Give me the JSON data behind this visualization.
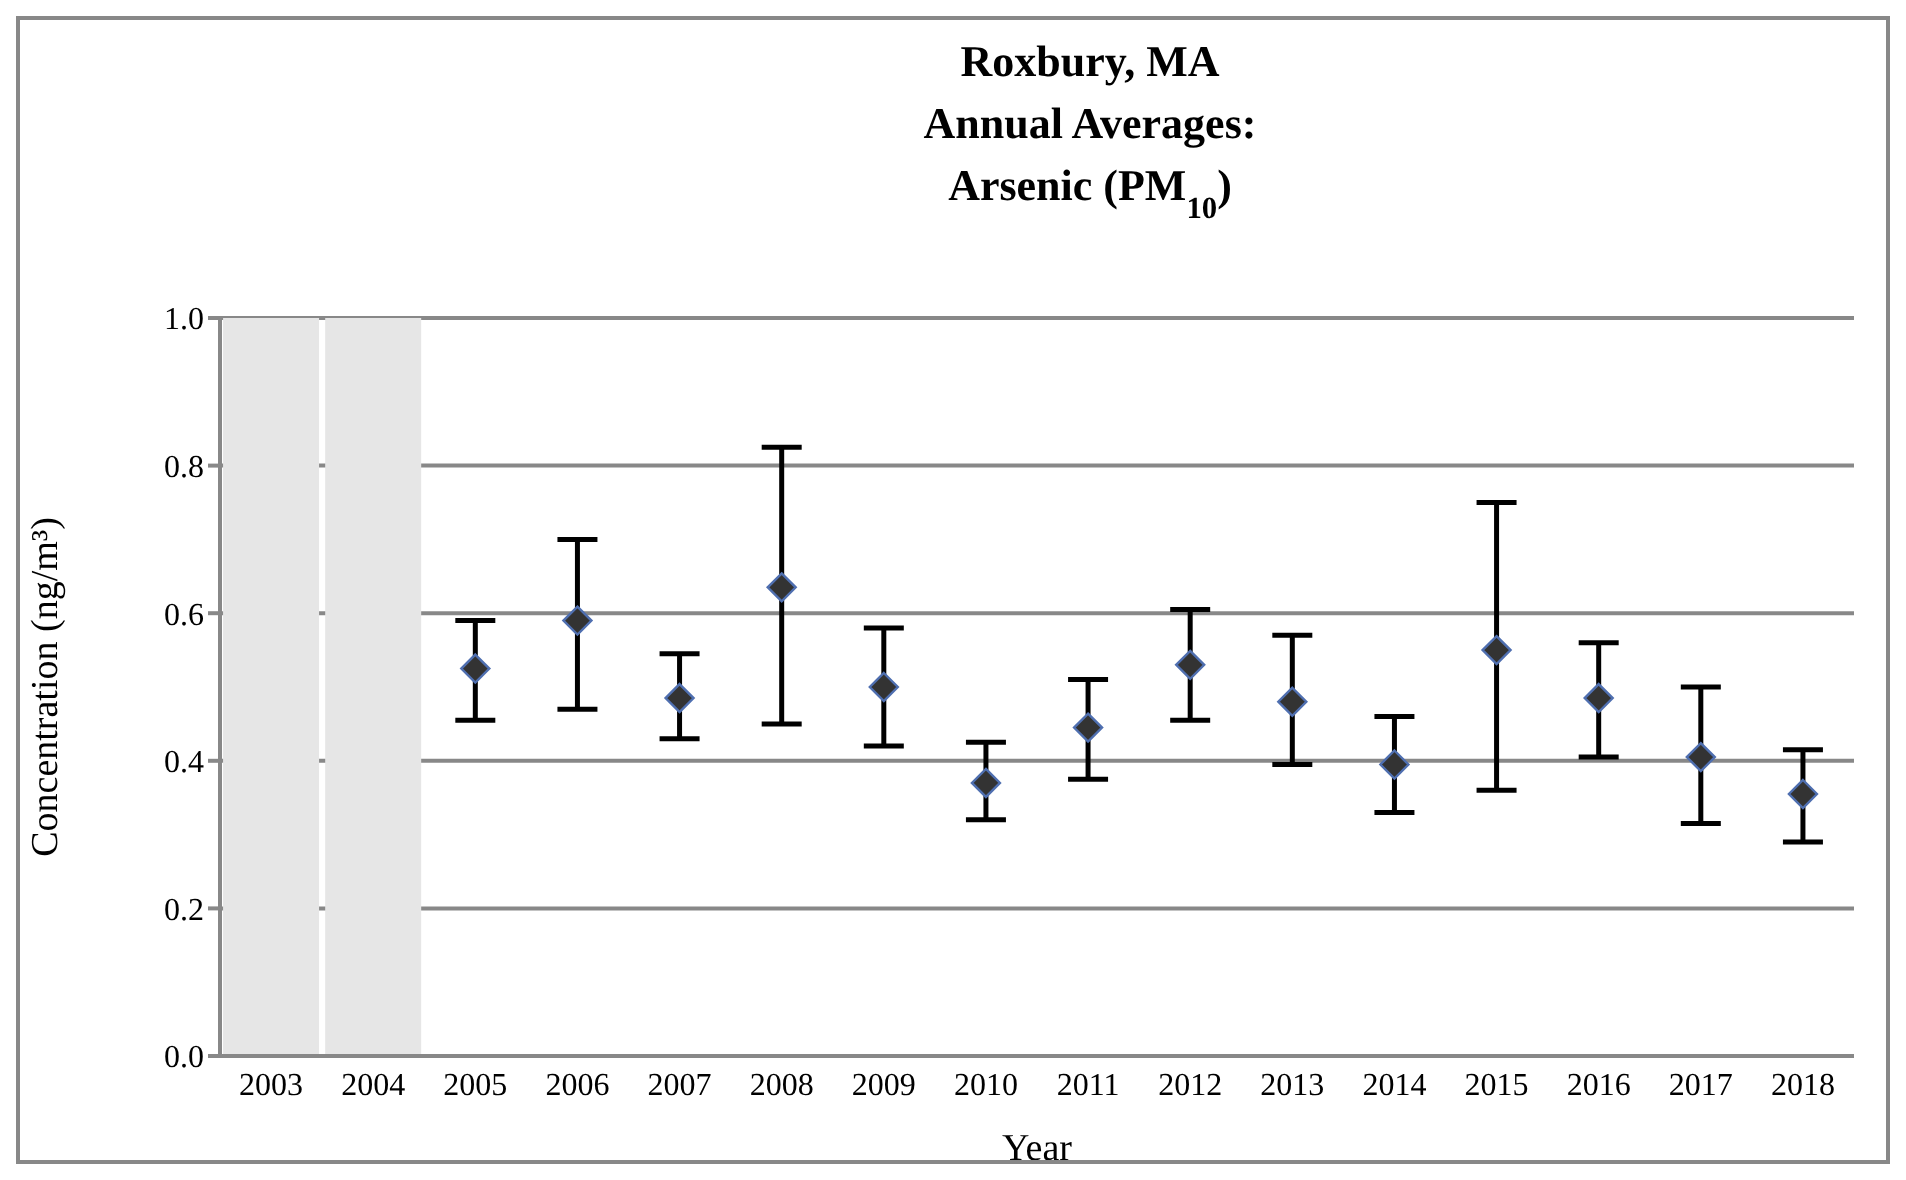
{
  "chart_data": {
    "type": "scatter",
    "title": "Roxbury, MA\nAnnual Averages:\nArsenic (PM$_{10}$)",
    "xlabel": "Year",
    "ylabel": "Concentration (ng/m³)",
    "categories": [
      "2003",
      "2004",
      "2005",
      "2006",
      "2007",
      "2008",
      "2009",
      "2010",
      "2011",
      "2012",
      "2013",
      "2014",
      "2015",
      "2016",
      "2017",
      "2018"
    ],
    "values": [
      null,
      null,
      0.525,
      0.59,
      0.485,
      0.635,
      0.5,
      0.37,
      0.445,
      0.53,
      0.48,
      0.395,
      0.55,
      0.485,
      0.405,
      0.355
    ],
    "errors": [
      null,
      null,
      [
        0.455,
        0.59
      ],
      [
        0.47,
        0.7
      ],
      [
        0.43,
        0.545
      ],
      [
        0.45,
        0.825
      ],
      [
        0.42,
        0.58
      ],
      [
        0.32,
        0.425
      ],
      [
        0.375,
        0.51
      ],
      [
        0.455,
        0.605
      ],
      [
        0.395,
        0.57
      ],
      [
        0.33,
        0.46
      ],
      [
        0.36,
        0.75
      ],
      [
        0.405,
        0.56
      ],
      [
        0.315,
        0.5
      ],
      [
        0.29,
        0.415
      ]
    ],
    "color": "#333333",
    "marker": "diamond",
    "ylim": [
      0,
      1
    ],
    "yticks": [
      {
        "value": 0,
        "label": "0.0"
      },
      {
        "value": 0.2,
        "label": "0.2"
      },
      {
        "value": 0.4,
        "label": "0.4"
      },
      {
        "value": 0.6,
        "label": "0.6"
      },
      {
        "value": 0.8,
        "label": "0.8"
      },
      {
        "value": 1,
        "label": "1.0"
      }
    ],
    "grid": "y",
    "bands": [
      {
        "axis": "x",
        "from": "2003",
        "to": "2003",
        "color": "#e6e6e6"
      },
      {
        "axis": "x",
        "from": "2004",
        "to": "2004",
        "color": "#e6e6e6"
      }
    ]
  }
}
